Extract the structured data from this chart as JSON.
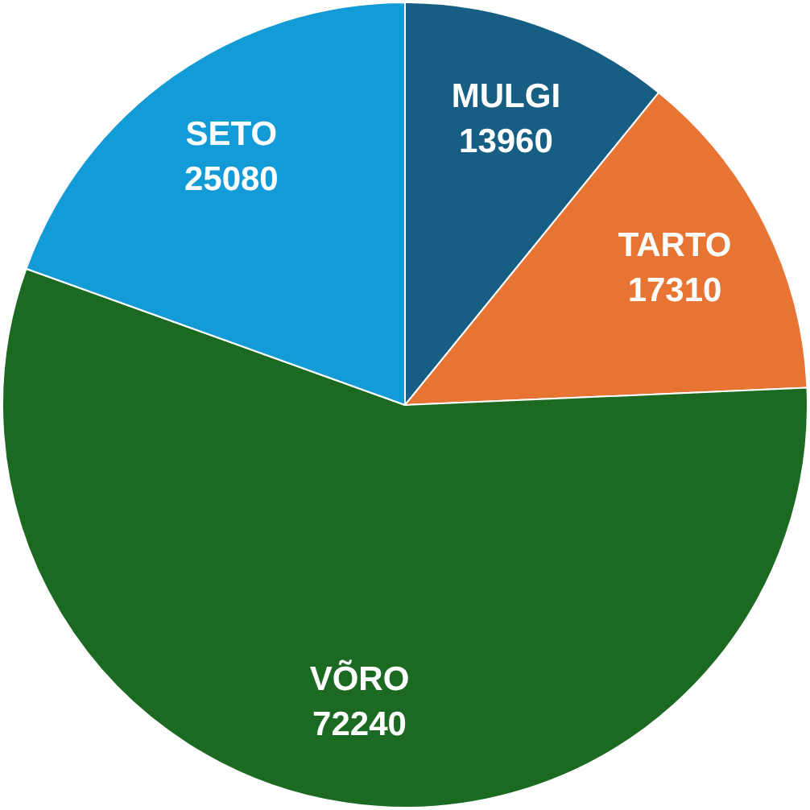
{
  "chart_data": {
    "type": "pie",
    "categories": [
      "MULGI",
      "TARTO",
      "VÕRO",
      "SETO"
    ],
    "values": [
      13960,
      17310,
      72240,
      25080
    ],
    "colors": [
      "#175e85",
      "#e87433",
      "#1c6a22",
      "#139bd7"
    ],
    "data_labels": true,
    "legend": false
  }
}
